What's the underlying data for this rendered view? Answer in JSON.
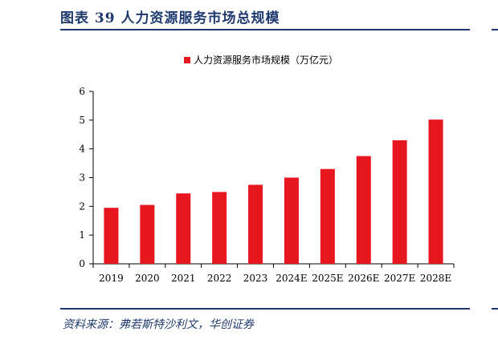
{
  "header": {
    "title": "图表 39 人力资源服务市场总规模"
  },
  "footer": {
    "source": "资料来源：弗若斯特沙利文，华创证券"
  },
  "chart_data": {
    "type": "bar",
    "categories": [
      "2019",
      "2020",
      "2021",
      "2022",
      "2023",
      "2024E",
      "2025E",
      "2026E",
      "2027E",
      "2028E"
    ],
    "series": [
      {
        "name": "人力资源服务市场规模（万亿元）",
        "values": [
          1.95,
          2.05,
          2.45,
          2.5,
          2.75,
          3.0,
          3.3,
          3.75,
          4.3,
          5.02
        ],
        "color": "#e8161e"
      }
    ],
    "ylim": [
      0,
      6
    ],
    "yticks": [
      "0",
      "1",
      "2",
      "3",
      "4",
      "5",
      "6"
    ],
    "grid": false,
    "legend_position": "top-center",
    "xlabel": "",
    "ylabel": ""
  }
}
